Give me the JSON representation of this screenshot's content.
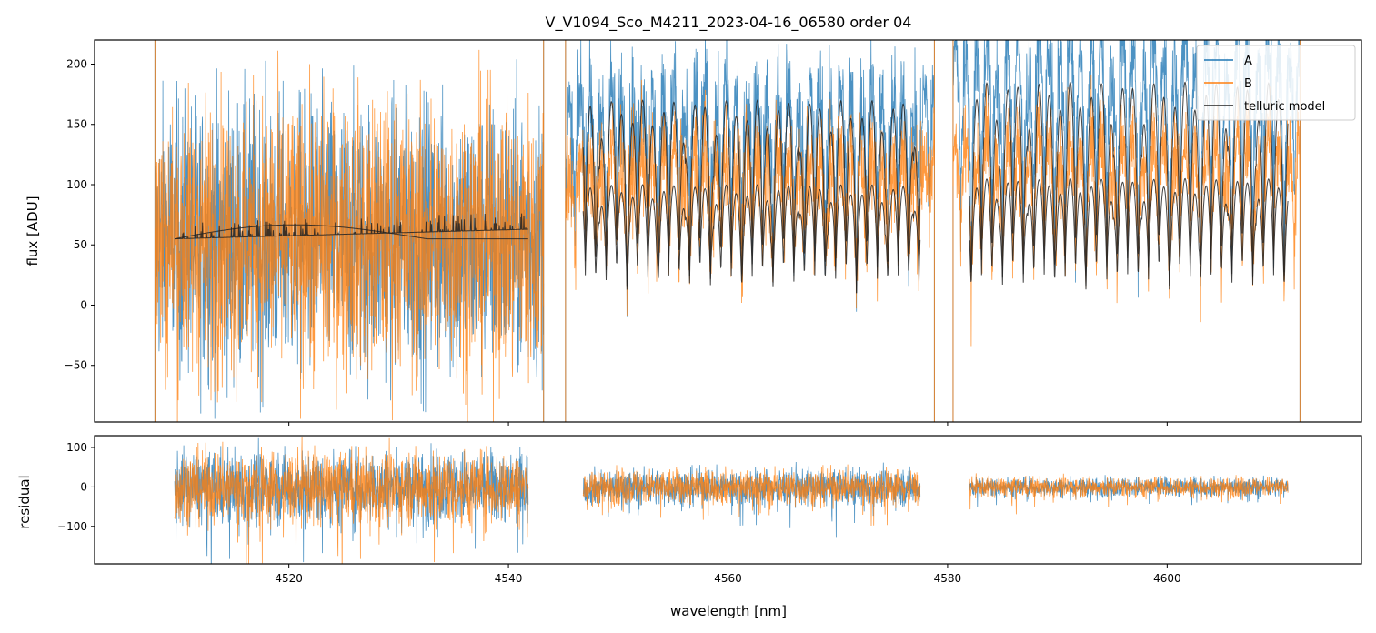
{
  "chart_data": [
    {
      "type": "line",
      "title": "V_V1094_Sco_M4211_2023-04-16_06580  order 04",
      "xlabel": "",
      "ylabel": "flux [ADU]",
      "xlim": [
        4502.3,
        4617.7
      ],
      "ylim": [
        -97,
        220
      ],
      "yticks": [
        -50,
        0,
        50,
        100,
        150,
        200
      ],
      "ytick_labels": [
        "−50",
        "0",
        "50",
        "100",
        "150",
        "200"
      ],
      "xticks": [
        4520,
        4540,
        4560,
        4580,
        4600
      ],
      "legend": {
        "location": "top-right",
        "entries": [
          {
            "label": "A",
            "color": "#1f77b4"
          },
          {
            "label": "B",
            "color": "#ff7f0e"
          },
          {
            "label": "telluric model",
            "color": "#222222"
          }
        ]
      },
      "series": [
        {
          "name": "A",
          "color": "#1f77b4",
          "description": "noisy spectrum, three segments",
          "segments": [
            {
              "x": [
                4507.8,
                4543.2
              ],
              "baseline": 55,
              "noise": 150
            },
            {
              "x": [
                4545.2,
                4578.8
              ],
              "baseline": 140,
              "amplitude": 110,
              "noise": 35
            },
            {
              "x": [
                4580.5,
                4612.1
              ],
              "baseline": 170,
              "amplitude": 150,
              "noise": 30
            }
          ]
        },
        {
          "name": "B",
          "color": "#ff7f0e",
          "segments": [
            {
              "x": [
                4507.8,
                4543.2
              ],
              "baseline": 55,
              "noise": 150
            },
            {
              "x": [
                4545.2,
                4578.8
              ],
              "baseline": 100,
              "amplitude": 80,
              "noise": 35
            },
            {
              "x": [
                4580.5,
                4612.1
              ],
              "baseline": 105,
              "amplitude": 100,
              "noise": 30
            }
          ]
        },
        {
          "name": "telluric model",
          "color": "#222222",
          "segments": [
            {
              "x": [
                4509.6,
                4541.8
              ],
              "upper": 68,
              "lower": 55
            },
            {
              "x": [
                4546.8,
                4577.5
              ],
              "peakA": 170,
              "peakB": 100
            },
            {
              "x": [
                4582.0,
                4611.0
              ],
              "peakA": 185,
              "peakB": 105
            }
          ]
        }
      ]
    },
    {
      "type": "line",
      "title": "",
      "xlabel": "wavelength [nm]",
      "ylabel": "residual",
      "xlim": [
        4502.3,
        4617.7
      ],
      "ylim": [
        -195,
        130
      ],
      "yticks": [
        -100,
        0,
        100
      ],
      "ytick_labels": [
        "−100",
        "0",
        "100"
      ],
      "xticks": [
        4520,
        4540,
        4560,
        4580,
        4600
      ],
      "xtick_labels": [
        "4520",
        "4540",
        "4560",
        "4580",
        "4600"
      ],
      "reference_line": 0,
      "series": [
        {
          "name": "A",
          "color": "#1f77b4",
          "segments": [
            {
              "x": [
                4509.6,
                4541.8
              ],
              "spread": 110
            },
            {
              "x": [
                4546.8,
                4577.5
              ],
              "spread": 55
            },
            {
              "x": [
                4582.0,
                4611.0
              ],
              "spread": 30
            }
          ]
        },
        {
          "name": "B",
          "color": "#ff7f0e",
          "segments": [
            {
              "x": [
                4509.6,
                4541.8
              ],
              "spread": 110
            },
            {
              "x": [
                4546.8,
                4577.5
              ],
              "spread": 55
            },
            {
              "x": [
                4582.0,
                4611.0
              ],
              "spread": 30
            }
          ]
        }
      ]
    }
  ]
}
